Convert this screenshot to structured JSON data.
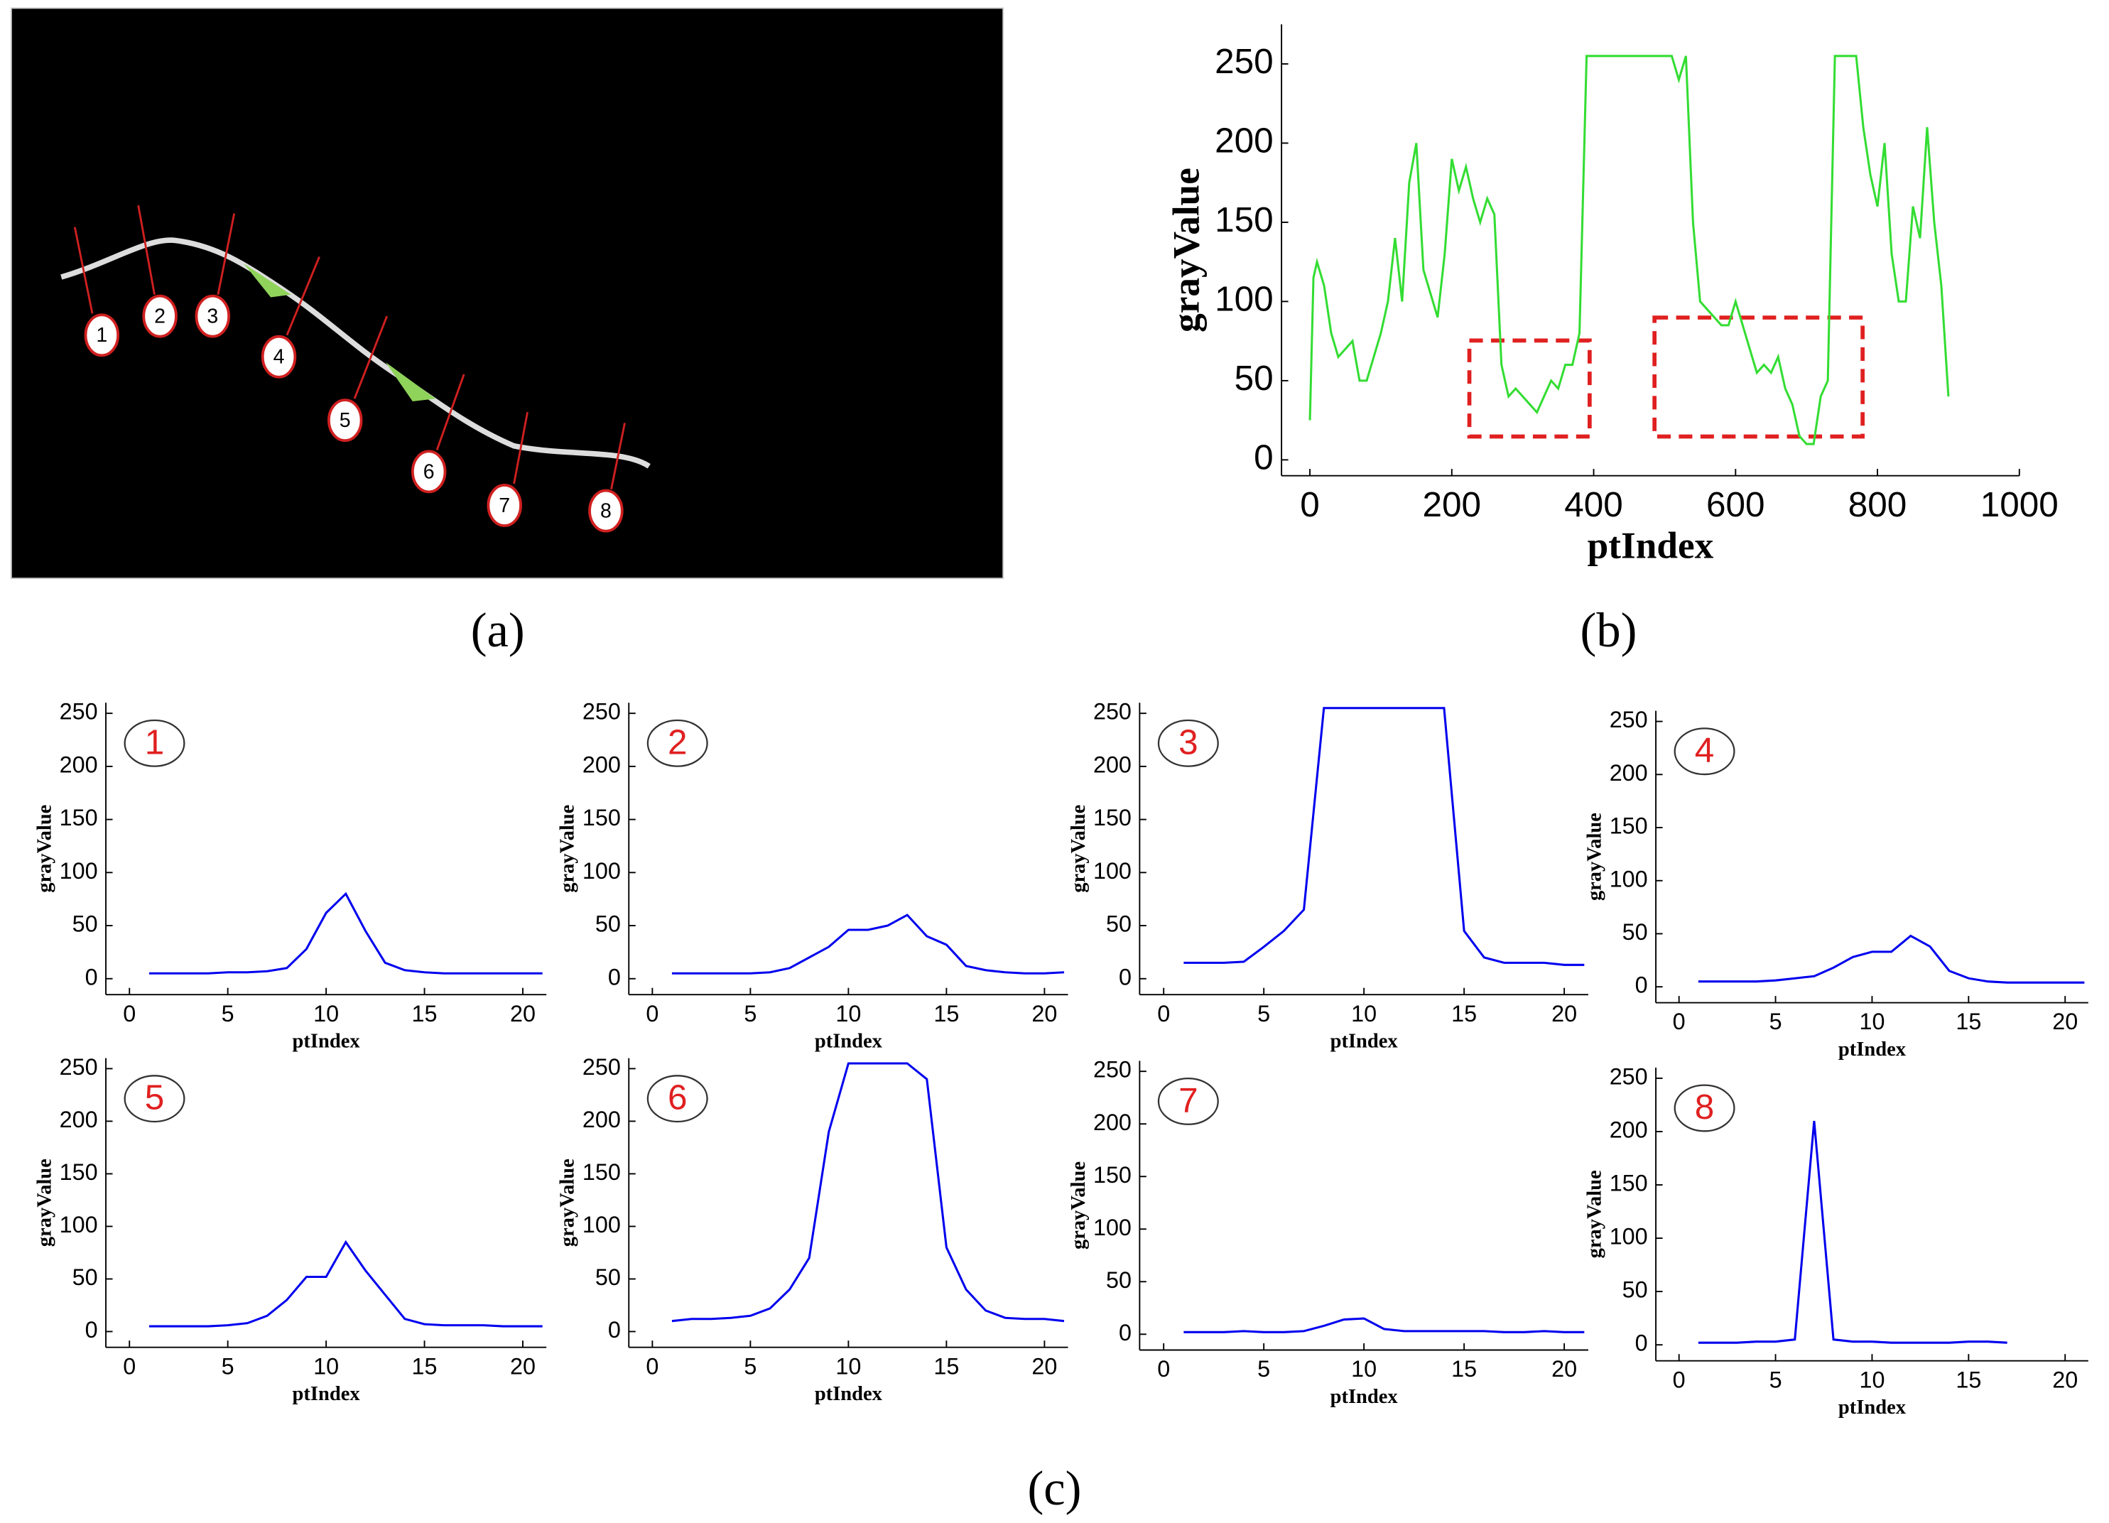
{
  "panels": [
    "(a)",
    "(b)",
    "(c)"
  ],
  "image": {
    "markers": [
      "1",
      "2",
      "3",
      "4",
      "5",
      "6",
      "7",
      "8"
    ]
  },
  "chart_data": [
    {
      "type": "line",
      "xlabel": "ptIndex",
      "ylabel": "grayValue",
      "color": "#33dd33",
      "x": [
        0,
        5,
        10,
        20,
        30,
        40,
        50,
        60,
        70,
        80,
        90,
        100,
        110,
        120,
        130,
        140,
        150,
        160,
        170,
        180,
        190,
        200,
        210,
        220,
        230,
        240,
        250,
        260,
        270,
        280,
        290,
        300,
        310,
        320,
        330,
        340,
        350,
        360,
        370,
        380,
        390,
        400,
        410,
        420,
        430,
        440,
        450,
        460,
        470,
        480,
        490,
        500,
        510,
        520,
        530,
        540,
        550,
        560,
        570,
        580,
        590,
        600,
        610,
        620,
        630,
        640,
        650,
        660,
        670,
        680,
        690,
        700,
        710,
        720,
        730,
        740,
        750,
        760,
        770,
        780,
        790,
        800,
        810,
        820,
        830,
        840,
        850,
        860,
        870,
        880,
        890,
        900
      ],
      "values": [
        25,
        115,
        125,
        110,
        80,
        65,
        70,
        75,
        50,
        50,
        65,
        80,
        100,
        140,
        100,
        175,
        200,
        120,
        105,
        90,
        130,
        190,
        170,
        185,
        165,
        150,
        165,
        155,
        60,
        40,
        45,
        40,
        35,
        30,
        40,
        50,
        45,
        60,
        60,
        80,
        255,
        255,
        255,
        255,
        255,
        255,
        255,
        255,
        255,
        255,
        255,
        255,
        255,
        240,
        255,
        150,
        100,
        95,
        90,
        85,
        85,
        100,
        85,
        70,
        55,
        60,
        55,
        65,
        45,
        35,
        15,
        10,
        10,
        40,
        50,
        255,
        255,
        255,
        255,
        210,
        180,
        160,
        200,
        130,
        100,
        100,
        160,
        140,
        210,
        150,
        110,
        40
      ],
      "xlim": [
        -40,
        1000
      ],
      "xticks": [
        0,
        200,
        400,
        600,
        800,
        1000
      ],
      "ylim": [
        -10,
        275
      ],
      "yticks": [
        0,
        50,
        100,
        150,
        200,
        250
      ]
    },
    {
      "type": "line",
      "annotation": "1",
      "xlabel": "ptIndex",
      "ylabel": "grayValue",
      "color": "#0000ee",
      "x": [
        1,
        2,
        3,
        4,
        5,
        6,
        7,
        8,
        9,
        10,
        11,
        12,
        13,
        14,
        15,
        16,
        17,
        18,
        19,
        20,
        21
      ],
      "values": [
        5,
        5,
        5,
        5,
        6,
        6,
        7,
        10,
        28,
        62,
        80,
        45,
        15,
        8,
        6,
        5,
        5,
        5,
        5,
        5,
        5
      ],
      "xlim": [
        -1.2,
        21.2
      ],
      "xticks": [
        0,
        5,
        10,
        15,
        20
      ],
      "ylim": [
        -15,
        260
      ],
      "yticks": [
        0,
        50,
        100,
        150,
        200,
        250
      ]
    },
    {
      "type": "line",
      "annotation": "2",
      "xlabel": "ptIndex",
      "ylabel": "grayValue",
      "color": "#0000ee",
      "x": [
        1,
        2,
        3,
        4,
        5,
        6,
        7,
        8,
        9,
        10,
        11,
        12,
        13,
        14,
        15,
        16,
        17,
        18,
        19,
        20,
        21
      ],
      "values": [
        5,
        5,
        5,
        5,
        5,
        6,
        10,
        20,
        30,
        46,
        46,
        50,
        60,
        40,
        32,
        12,
        8,
        6,
        5,
        5,
        6
      ],
      "xlim": [
        -1.2,
        21.2
      ],
      "xticks": [
        0,
        5,
        10,
        15,
        20
      ],
      "ylim": [
        -15,
        260
      ],
      "yticks": [
        0,
        50,
        100,
        150,
        200,
        250
      ]
    },
    {
      "type": "line",
      "annotation": "3",
      "xlabel": "ptIndex",
      "ylabel": "grayValue",
      "color": "#0000ee",
      "x": [
        1,
        2,
        3,
        4,
        5,
        6,
        7,
        8,
        9,
        10,
        11,
        12,
        13,
        14,
        15,
        16,
        17,
        18,
        19,
        20,
        21
      ],
      "values": [
        15,
        15,
        15,
        16,
        30,
        45,
        65,
        255,
        255,
        255,
        255,
        255,
        255,
        255,
        45,
        20,
        15,
        15,
        15,
        13,
        13
      ],
      "xlim": [
        -1.2,
        21.2
      ],
      "xticks": [
        0,
        5,
        10,
        15,
        20
      ],
      "ylim": [
        -15,
        260
      ],
      "yticks": [
        0,
        50,
        100,
        150,
        200,
        250
      ]
    },
    {
      "type": "line",
      "annotation": "4",
      "xlabel": "ptIndex",
      "ylabel": "grayValue",
      "color": "#0000ee",
      "x": [
        1,
        2,
        3,
        4,
        5,
        6,
        7,
        8,
        9,
        10,
        11,
        12,
        13,
        14,
        15,
        16,
        17,
        18,
        19,
        20,
        21
      ],
      "values": [
        5,
        5,
        5,
        5,
        6,
        8,
        10,
        18,
        28,
        33,
        33,
        48,
        38,
        15,
        8,
        5,
        4,
        4,
        4,
        4,
        4
      ],
      "xlim": [
        -1.2,
        21.2
      ],
      "xticks": [
        0,
        5,
        10,
        15,
        20
      ],
      "ylim": [
        -15,
        260
      ],
      "yticks": [
        0,
        50,
        100,
        150,
        200,
        250
      ]
    },
    {
      "type": "line",
      "annotation": "5",
      "xlabel": "ptIndex",
      "ylabel": "grayValue",
      "color": "#0000ee",
      "x": [
        1,
        2,
        3,
        4,
        5,
        6,
        7,
        8,
        9,
        10,
        11,
        12,
        13,
        14,
        15,
        16,
        17,
        18,
        19,
        20,
        21
      ],
      "values": [
        5,
        5,
        5,
        5,
        6,
        8,
        15,
        30,
        52,
        52,
        85,
        58,
        35,
        12,
        7,
        6,
        6,
        6,
        5,
        5,
        5
      ],
      "xlim": [
        -1.2,
        21.2
      ],
      "xticks": [
        0,
        5,
        10,
        15,
        20
      ],
      "ylim": [
        -15,
        260
      ],
      "yticks": [
        0,
        50,
        100,
        150,
        200,
        250
      ]
    },
    {
      "type": "line",
      "annotation": "6",
      "xlabel": "ptIndex",
      "ylabel": "grayValue",
      "color": "#0000ee",
      "x": [
        1,
        2,
        3,
        4,
        5,
        6,
        7,
        8,
        9,
        10,
        11,
        12,
        13,
        14,
        15,
        16,
        17,
        18,
        19,
        20,
        21
      ],
      "values": [
        10,
        12,
        12,
        13,
        15,
        22,
        40,
        70,
        190,
        255,
        255,
        255,
        255,
        240,
        80,
        40,
        20,
        13,
        12,
        12,
        10
      ],
      "xlim": [
        -1.2,
        21.2
      ],
      "xticks": [
        0,
        5,
        10,
        15,
        20
      ],
      "ylim": [
        -15,
        260
      ],
      "yticks": [
        0,
        50,
        100,
        150,
        200,
        250
      ]
    },
    {
      "type": "line",
      "annotation": "7",
      "xlabel": "ptIndex",
      "ylabel": "grayValue",
      "color": "#0000ee",
      "x": [
        1,
        2,
        3,
        4,
        5,
        6,
        7,
        8,
        9,
        10,
        11,
        12,
        13,
        14,
        15,
        16,
        17,
        18,
        19,
        20,
        21
      ],
      "values": [
        2,
        2,
        2,
        3,
        2,
        2,
        3,
        8,
        14,
        15,
        5,
        3,
        3,
        3,
        3,
        3,
        2,
        2,
        3,
        2,
        2
      ],
      "xlim": [
        -1.2,
        21.2
      ],
      "xticks": [
        0,
        5,
        10,
        15,
        20
      ],
      "ylim": [
        -15,
        260
      ],
      "yticks": [
        0,
        50,
        100,
        150,
        200,
        250
      ]
    },
    {
      "type": "line",
      "annotation": "8",
      "xlabel": "ptIndex",
      "ylabel": "grayValue",
      "color": "#0000ee",
      "x": [
        1,
        2,
        3,
        4,
        5,
        6,
        7,
        8,
        9,
        10,
        11,
        12,
        13,
        14,
        15,
        16,
        17
      ],
      "values": [
        2,
        2,
        2,
        3,
        3,
        5,
        210,
        5,
        3,
        3,
        2,
        2,
        2,
        2,
        3,
        3,
        2
      ],
      "xlim": [
        -1.2,
        21.2
      ],
      "xticks": [
        0,
        5,
        10,
        15,
        20
      ],
      "ylim": [
        -15,
        260
      ],
      "yticks": [
        0,
        50,
        100,
        150,
        200,
        250
      ]
    }
  ]
}
